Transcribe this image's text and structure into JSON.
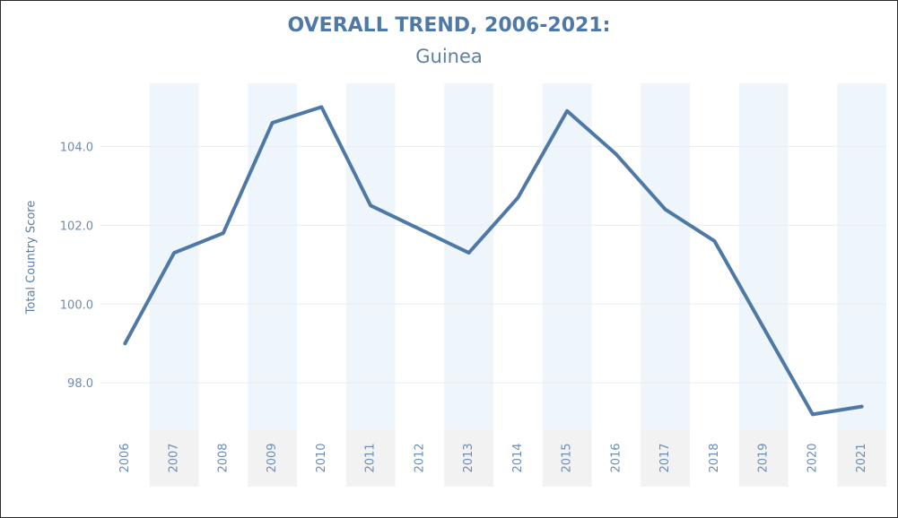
{
  "chart_data": {
    "type": "line",
    "title": "OVERALL TREND, 2006-2021:",
    "subtitle": "Guinea",
    "xlabel": "",
    "ylabel": "Total Country Score",
    "categories": [
      "2006",
      "2007",
      "2008",
      "2009",
      "2010",
      "2011",
      "2012",
      "2013",
      "2014",
      "2015",
      "2016",
      "2017",
      "2018",
      "2019",
      "2020",
      "2021"
    ],
    "values": [
      99.0,
      101.3,
      101.8,
      104.6,
      105.0,
      102.5,
      101.9,
      101.3,
      102.7,
      104.9,
      103.8,
      102.4,
      101.6,
      99.4,
      97.2,
      97.4
    ],
    "yticks": [
      "98.0",
      "100.0",
      "102.0",
      "104.0"
    ],
    "ylim": [
      96.8,
      105.6
    ],
    "grid": true,
    "colors": {
      "line": "#4e79a7",
      "band": "#eef5fb",
      "axis_band": "#f2f2f2",
      "gridline": "#ececec"
    }
  }
}
